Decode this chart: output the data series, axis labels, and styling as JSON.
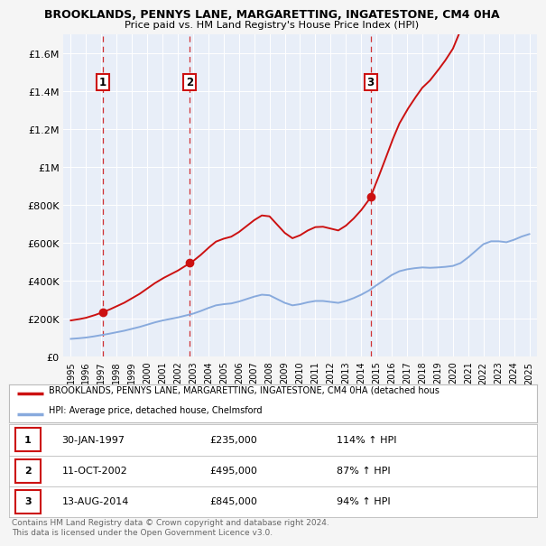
{
  "title1": "BROOKLANDS, PENNYS LANE, MARGARETTING, INGATESTONE, CM4 0HA",
  "title2": "Price paid vs. HM Land Registry's House Price Index (HPI)",
  "background_color": "#f5f5f5",
  "plot_bg": "#e8eef8",
  "grid_color": "#ffffff",
  "sale_color": "#cc1111",
  "hpi_color": "#88aadd",
  "sale_dates": [
    1997.08,
    2002.78,
    2014.62
  ],
  "sale_prices": [
    235000,
    495000,
    845000
  ],
  "sale_labels": [
    "1",
    "2",
    "3"
  ],
  "annotations": [
    {
      "label": "1",
      "date": "30-JAN-1997",
      "price": "£235,000",
      "pct": "114% ↑ HPI"
    },
    {
      "label": "2",
      "date": "11-OCT-2002",
      "price": "£495,000",
      "pct": "87% ↑ HPI"
    },
    {
      "label": "3",
      "date": "13-AUG-2014",
      "price": "£845,000",
      "pct": "94% ↑ HPI"
    }
  ],
  "legend_sale": "BROOKLANDS, PENNYS LANE, MARGARETTING, INGATESTONE, CM4 0HA (detached hous",
  "legend_hpi": "HPI: Average price, detached house, Chelmsford",
  "footer": "Contains HM Land Registry data © Crown copyright and database right 2024.\nThis data is licensed under the Open Government Licence v3.0.",
  "ylim": [
    0,
    1700000
  ],
  "xlim": [
    1994.5,
    2025.5
  ],
  "yticks": [
    0,
    200000,
    400000,
    600000,
    800000,
    1000000,
    1200000,
    1400000,
    1600000
  ]
}
